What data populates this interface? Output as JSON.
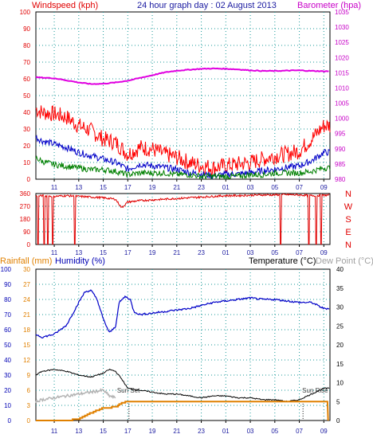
{
  "chart_data": [
    {
      "type": "line",
      "title": "24 hour graph day : 02 August 2013",
      "left_axis_label": "Windspeed (kph)",
      "right_axis_label": "Barometer (hpa)",
      "x_ticks": [
        "11",
        "13",
        "15",
        "17",
        "19",
        "21",
        "23",
        "01",
        "03",
        "05",
        "07",
        "09"
      ],
      "y_left_ticks": [
        "0",
        "10",
        "20",
        "30",
        "40",
        "50",
        "60",
        "70",
        "80",
        "90",
        "100"
      ],
      "y_right_ticks": [
        "980",
        "985",
        "990",
        "995",
        "1000",
        "1005",
        "1010",
        "1015",
        "1020",
        "1025",
        "1030",
        "1035"
      ],
      "ylim_left": [
        0,
        100
      ],
      "ylim_right": [
        980,
        1035
      ],
      "colors": {
        "gust": "#ff0000",
        "average": "#0000c8",
        "low": "#008000",
        "barometer": "#e000e0"
      },
      "series": [
        {
          "axis": "left",
          "x": [
            9.5,
            10,
            11,
            12,
            13,
            14,
            15,
            16,
            17,
            18,
            19,
            20,
            21,
            22,
            23,
            24,
            25,
            26,
            27,
            28,
            29,
            30,
            31,
            32,
            33
          ],
          "values": [
            40,
            38,
            37,
            35,
            30,
            27,
            22,
            20,
            13,
            17,
            16,
            13,
            11,
            8,
            6,
            5,
            6,
            7,
            8,
            10,
            12,
            13,
            15,
            22,
            30
          ]
        },
        {
          "axis": "left",
          "x": [
            9.5,
            10,
            11,
            12,
            13,
            14,
            15,
            16,
            17,
            18,
            19,
            20,
            21,
            22,
            23,
            24,
            25,
            26,
            27,
            28,
            29,
            30,
            31,
            32,
            33
          ],
          "values": [
            25,
            23,
            21,
            19,
            16,
            14,
            12,
            10,
            6,
            9,
            8,
            7,
            6,
            4,
            3,
            2,
            3,
            3,
            4,
            5,
            6,
            7,
            8,
            11,
            16
          ]
        },
        {
          "axis": "left",
          "x": [
            9.5,
            10,
            11,
            12,
            13,
            14,
            15,
            16,
            17,
            18,
            19,
            20,
            21,
            22,
            23,
            24,
            25,
            26,
            27,
            28,
            29,
            30,
            31,
            32,
            33
          ],
          "values": [
            12,
            10,
            8,
            7,
            6,
            5,
            5,
            4,
            2,
            3,
            3,
            3,
            2,
            2,
            1,
            1,
            1,
            1,
            2,
            2,
            3,
            3,
            3,
            4,
            6
          ]
        },
        {
          "axis": "right",
          "x": [
            9.5,
            10,
            11,
            12,
            13,
            14,
            15,
            16,
            17,
            18,
            19,
            20,
            21,
            22,
            23,
            24,
            25,
            26,
            27,
            28,
            29,
            30,
            31,
            32,
            33
          ],
          "values": [
            1013.5,
            1013.4,
            1013.2,
            1012.5,
            1011.8,
            1011.3,
            1011.4,
            1011.8,
            1012.4,
            1013.3,
            1014.2,
            1015.1,
            1015.7,
            1016.0,
            1016.3,
            1016.4,
            1016.3,
            1016.1,
            1015.8,
            1015.6,
            1015.6,
            1015.7,
            1015.8,
            1015.6,
            1015.5
          ]
        }
      ]
    },
    {
      "type": "scatter",
      "right_axis_labels": [
        "N",
        "W",
        "S",
        "E",
        "N"
      ],
      "y_ticks": [
        "0",
        "90",
        "180",
        "270",
        "360"
      ],
      "ylim": [
        0,
        360
      ],
      "x_ticks": [
        "11",
        "13",
        "15",
        "17",
        "19",
        "21",
        "23",
        "01",
        "03",
        "05",
        "07",
        "09"
      ],
      "color": "#e00000",
      "series": [
        {
          "x": [
            9.5,
            10,
            11,
            12,
            13,
            14,
            15,
            16,
            16.5,
            17,
            18,
            19,
            20,
            21,
            22,
            23,
            24,
            25,
            26,
            27,
            28,
            29,
            30,
            31,
            32,
            33
          ],
          "values": [
            340,
            345,
            340,
            345,
            340,
            335,
            330,
            320,
            260,
            300,
            310,
            315,
            320,
            325,
            330,
            335,
            340,
            345,
            345,
            348,
            350,
            350,
            352,
            350,
            345,
            348
          ]
        }
      ],
      "drops_to_zero_hours": [
        9.7,
        10.2,
        10.5,
        10.9,
        12.7,
        29.5,
        31.8,
        32.4,
        32.8
      ]
    },
    {
      "type": "line",
      "left_axis_labels": [
        "Rainfall (mm)",
        "Humidity (%)"
      ],
      "right_axis_labels": [
        "Temperature (°C)",
        "Dew Point (°C)"
      ],
      "y_humidity_ticks": [
        "0",
        "10",
        "20",
        "30",
        "40",
        "50",
        "60",
        "70",
        "80",
        "90",
        "100"
      ],
      "y_rain_ticks": [
        "0",
        "3",
        "6",
        "9",
        "12",
        "15",
        "18",
        "21",
        "24",
        "27",
        "30"
      ],
      "y_temp_ticks": [
        "0",
        "5",
        "10",
        "15",
        "20",
        "25",
        "30",
        "35",
        "40"
      ],
      "ylim_humidity": [
        0,
        100
      ],
      "ylim_temp": [
        0,
        40
      ],
      "x_ticks": [
        "11",
        "13",
        "15",
        "17",
        "19",
        "21",
        "23",
        "01",
        "03",
        "05",
        "07",
        "09"
      ],
      "annotations": [
        {
          "text": "Sun Set",
          "x": 17.1
        },
        {
          "text": "Sun Rise",
          "x": 31.3
        }
      ],
      "colors": {
        "humidity": "#0000c8",
        "temperature": "#000000",
        "dewpoint": "#b4b4b4",
        "rainfall": "#e08000"
      },
      "series": [
        {
          "axis": "humidity",
          "x": [
            9.5,
            10,
            11,
            12,
            13,
            13.5,
            14,
            14.5,
            15,
            15.5,
            16,
            16.3,
            16.8,
            17.2,
            17.5,
            18,
            19,
            20,
            21,
            22,
            23,
            24,
            25,
            26,
            27,
            28,
            29,
            30,
            31,
            32,
            33
          ],
          "values": [
            57,
            55,
            57,
            63,
            78,
            85,
            86,
            80,
            67,
            58,
            62,
            78,
            82,
            80,
            72,
            70,
            71,
            72,
            73,
            74,
            76,
            78,
            79,
            80,
            81,
            80,
            80,
            79,
            78,
            78,
            74
          ]
        },
        {
          "axis": "temperature",
          "x": [
            9.5,
            10,
            11,
            12,
            13,
            14,
            15,
            15.5,
            16,
            16.5,
            17,
            18,
            19,
            20,
            21,
            22,
            23,
            24,
            25,
            26,
            27,
            28,
            29,
            30,
            31,
            32,
            33
          ],
          "values": [
            12,
            13,
            13.5,
            13,
            12,
            11.5,
            12.5,
            13.5,
            13,
            11,
            8.5,
            8,
            7.5,
            7,
            7,
            6.5,
            6,
            6.5,
            6.5,
            6,
            6,
            5.5,
            5.5,
            5,
            5.5,
            7,
            8.5
          ]
        },
        {
          "axis": "temperature",
          "x": [
            9.5,
            10,
            11,
            12,
            13,
            14,
            15,
            15.5,
            16
          ],
          "values": [
            5,
            5.5,
            6,
            6.5,
            7,
            7.5,
            8,
            6.5,
            6
          ]
        },
        {
          "axis": "rain",
          "x": [
            9.5,
            10,
            11,
            12,
            13,
            13.5,
            14,
            15,
            16,
            16.3,
            16.6,
            17,
            18,
            19,
            20,
            21,
            22,
            23,
            24,
            25,
            26,
            27,
            28,
            29,
            30,
            31,
            32,
            33
          ],
          "values": [
            0,
            0,
            0,
            0,
            0.3,
            1.0,
            1.5,
            2.5,
            2.7,
            3.2,
            3.6,
            3.7,
            3.7,
            3.7,
            3.7,
            3.7,
            3.7,
            3.7,
            3.7,
            3.7,
            3.7,
            3.7,
            3.7,
            3.7,
            3.7,
            3.7,
            3.7,
            3.7
          ]
        }
      ]
    }
  ]
}
